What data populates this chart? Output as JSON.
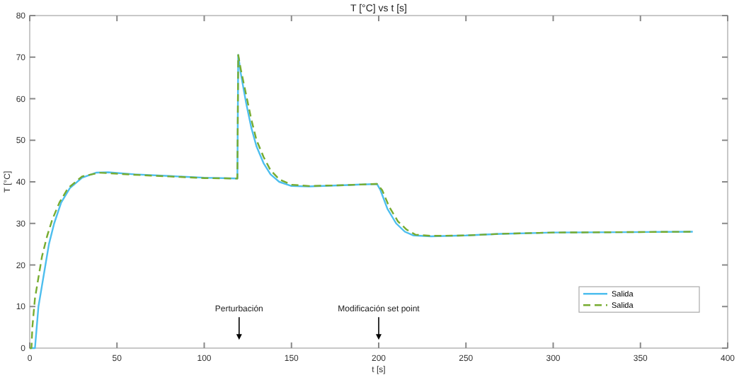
{
  "chart_data": {
    "type": "line",
    "title": "T [°C] vs t [s]",
    "xlabel": "t [s]",
    "ylabel": "T [°C]",
    "xlim": [
      0,
      400
    ],
    "xticks": [
      0,
      50,
      100,
      150,
      200,
      250,
      300,
      350,
      400
    ],
    "ylim": [
      0,
      80
    ],
    "yticks": [
      0,
      10,
      20,
      30,
      40,
      50,
      60,
      70,
      80
    ],
    "grid": false,
    "legend": "bottom right",
    "annotations": [
      {
        "text": "Perturbación",
        "x": 120,
        "y": 2
      },
      {
        "text": "Modificación set point",
        "x": 200,
        "y": 2
      }
    ],
    "series": [
      {
        "name": "Salida",
        "color": "#4dbeee",
        "line_style": "solid",
        "x": [
          0,
          3,
          4,
          5,
          7,
          9,
          11,
          14,
          18,
          23,
          30,
          38,
          45,
          60,
          80,
          100,
          119,
          119.5,
          121,
          124,
          127,
          130,
          134,
          138,
          143,
          150,
          160,
          180,
          199,
          201,
          205,
          210,
          215,
          220,
          230,
          250,
          270,
          300,
          340,
          380
        ],
        "values": [
          0,
          0,
          5,
          10,
          15,
          20,
          25,
          30,
          35,
          38.5,
          41,
          42.2,
          42.3,
          41.8,
          41.4,
          41,
          40.8,
          70.5,
          66,
          59,
          53,
          48.5,
          44.5,
          41.8,
          40,
          39,
          38.9,
          39.2,
          39.5,
          38,
          33.5,
          30,
          28,
          27.1,
          26.9,
          27.1,
          27.5,
          27.8,
          27.9,
          28
        ]
      },
      {
        "name": "Salida",
        "color": "#77ac30",
        "line_style": "dashed",
        "x": [
          0,
          1,
          1.5,
          3,
          5,
          7,
          10,
          13,
          17,
          22,
          30,
          40,
          60,
          80,
          100,
          119,
          119.5,
          121,
          124,
          127,
          130,
          134,
          138,
          143,
          150,
          160,
          180,
          199,
          202,
          206,
          211,
          216,
          221,
          230,
          250,
          270,
          300,
          340,
          380
        ],
        "values": [
          0,
          0,
          5,
          12,
          17,
          22,
          27,
          31,
          35,
          38.5,
          41.3,
          42.2,
          41.7,
          41.3,
          40.9,
          40.8,
          70.5,
          67,
          61,
          55,
          50,
          46,
          42.8,
          40.6,
          39.3,
          39,
          39.2,
          39.5,
          38,
          34,
          30.5,
          28.5,
          27.3,
          27,
          27.1,
          27.5,
          27.8,
          27.9,
          28
        ]
      }
    ]
  }
}
